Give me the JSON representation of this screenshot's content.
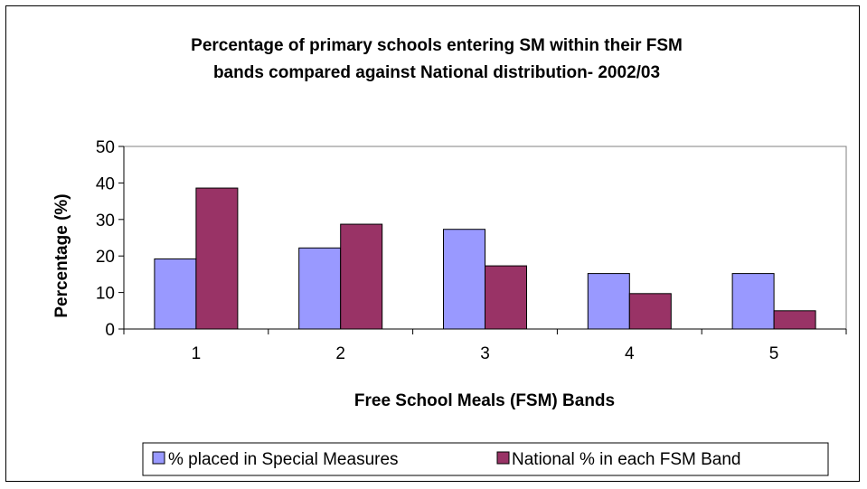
{
  "chart_data": {
    "type": "bar",
    "title_lines": [
      "Percentage of primary schools entering SM within their FSM",
      "bands compared against National distribution- 2002/03"
    ],
    "xlabel": "Free School Meals (FSM) Bands",
    "ylabel": "Percentage (%)",
    "categories": [
      "1",
      "2",
      "3",
      "4",
      "5"
    ],
    "ylim": [
      0,
      50
    ],
    "yticks": [
      "0",
      "10",
      "20",
      "30",
      "40",
      "50"
    ],
    "grid": false,
    "legend_position": "bottom",
    "series": [
      {
        "name": "% placed in Special Measures",
        "color": "#9999FF",
        "values": [
          19.2,
          22.2,
          27.3,
          15.2,
          15.2
        ]
      },
      {
        "name": "National % in each FSM Band",
        "color": "#993366",
        "values": [
          38.6,
          28.7,
          17.3,
          9.7,
          5.0
        ]
      }
    ]
  }
}
